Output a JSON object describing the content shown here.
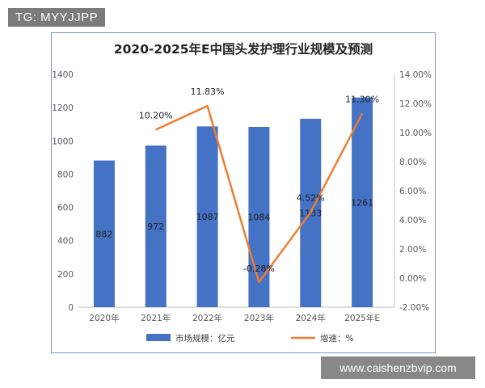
{
  "watermark_tag": "TG: MYYJJPP",
  "site_label": "www.caishenzbvip.com",
  "colors": {
    "bar": "#4472c4",
    "line": "#ed7d31",
    "frame": "#7f93c9",
    "grid": "#d9d9d9"
  },
  "chart_data": {
    "type": "bar",
    "title": "2020-2025年E中国头发护理行业规模及预测",
    "categories": [
      "2020年",
      "2021年",
      "2022年",
      "2023年",
      "2024年",
      "2025年E"
    ],
    "series": [
      {
        "name": "市场规模：亿元",
        "type": "bar",
        "axis": "left",
        "values": [
          882,
          972,
          1087,
          1084,
          1133,
          1261
        ],
        "labels": [
          "882",
          "972",
          "1087",
          "1084",
          "1133",
          "1261"
        ]
      },
      {
        "name": "增速：%",
        "type": "line",
        "axis": "right",
        "values": [
          null,
          10.2,
          11.83,
          -0.28,
          4.52,
          11.3
        ],
        "labels": [
          "",
          "10.20%",
          "11.83%",
          "-0.28%",
          "4.52%",
          "11.30%"
        ]
      }
    ],
    "y_left": {
      "min": 0,
      "max": 1400,
      "ticks": [
        "0",
        "200",
        "400",
        "600",
        "800",
        "1000",
        "1200",
        "1400"
      ]
    },
    "y_right": {
      "min": -2,
      "max": 14,
      "ticks": [
        "-2.00%",
        "0.00%",
        "2.00%",
        "4.00%",
        "6.00%",
        "8.00%",
        "10.00%",
        "12.00%",
        "14.00%"
      ]
    },
    "grid": false,
    "legend_position": "bottom"
  }
}
